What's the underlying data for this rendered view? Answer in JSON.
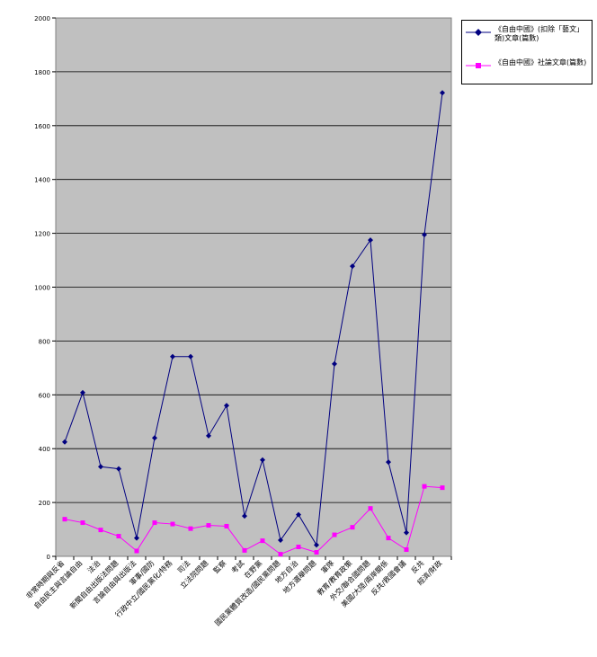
{
  "chart_data": {
    "type": "line",
    "title": "",
    "xlabel": "",
    "ylabel": "",
    "ylim": [
      0,
      2000
    ],
    "yticks": [
      0,
      200,
      400,
      600,
      800,
      1000,
      1200,
      1400,
      1600,
      1800,
      2000
    ],
    "grid": true,
    "plot_background": "#c0c0c0",
    "legend_position": "top-right",
    "categories": [
      "非常時期與反省",
      "自由民主與言論自由",
      "法治",
      "新聞自由出版法問題",
      "言論自由與出版法",
      "軍事/國防",
      "行政中立/國民黨化/特務",
      "司法",
      "立法院問題",
      "監察",
      "考試",
      "在野黨",
      "國民黨體質改造/國民黨問題",
      "地方自治",
      "地方選舉問題",
      "軍隊",
      "教育/教育政策",
      "外交/聯合國問題",
      "美國/大陸/兩岸關係",
      "反共/救國會議",
      "反共",
      "經濟/財政"
    ],
    "series": [
      {
        "name": "《自由中國》(扣除「藝文」類)文章(篇數)",
        "color": "#000080",
        "marker": "diamond",
        "values": [
          425,
          608,
          333,
          325,
          68,
          440,
          742,
          742,
          448,
          560,
          150,
          358,
          60,
          155,
          42,
          715,
          1078,
          1175,
          350,
          88,
          1195,
          1722
        ]
      },
      {
        "name": "《自由中國》社論文章(篇數)",
        "color": "#ff00ff",
        "marker": "square",
        "values": [
          138,
          125,
          98,
          75,
          20,
          125,
          120,
          103,
          115,
          112,
          22,
          58,
          8,
          35,
          15,
          80,
          108,
          178,
          68,
          25,
          260,
          255
        ]
      }
    ]
  }
}
